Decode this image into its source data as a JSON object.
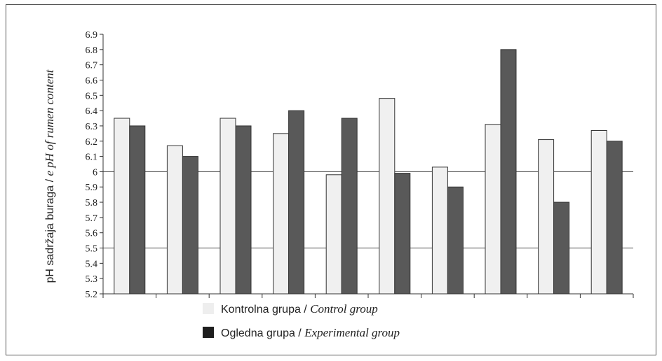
{
  "chart_data": {
    "type": "bar",
    "categories": [
      "",
      "",
      "",
      "",
      "",
      "",
      "",
      "",
      "",
      ""
    ],
    "series": [
      {
        "name": "Kontrolna grupa / Control group",
        "values": [
          6.35,
          6.17,
          6.35,
          6.25,
          5.98,
          6.48,
          6.03,
          6.31,
          6.21,
          6.27
        ],
        "color": "#f0f0f0"
      },
      {
        "name": "Ogledna grupa / Experimental group",
        "values": [
          6.3,
          6.1,
          6.3,
          6.4,
          6.35,
          5.99,
          5.9,
          6.8,
          5.8,
          6.2
        ],
        "color": "#595959"
      }
    ],
    "ylabel": "pH sadržaja buraga / e pH of rumen content",
    "ylim": [
      5.2,
      6.9
    ],
    "yticks": [
      "5.2",
      "5.3",
      "5.4",
      "5.5",
      "5.6",
      "5.7",
      "5.8",
      "5.9",
      "6",
      "6.1",
      "6.2",
      "6.3",
      "6.4",
      "6.5",
      "6.6",
      "6.7",
      "6.8",
      "6.9"
    ],
    "reference_lines": [
      6.0,
      5.5
    ],
    "grid": false,
    "legend_position": "bottom"
  },
  "ylabel_parts": {
    "plain": "pH sadržaja buraga / ",
    "italic": "e pH of rumen content"
  },
  "legend": [
    {
      "plain": "Kontrolna grupa / ",
      "italic": "Control group",
      "color": "#eeeeee"
    },
    {
      "plain": "Ogledna grupa / ",
      "italic": "Experimental group",
      "color": "#1e1e1e"
    }
  ]
}
